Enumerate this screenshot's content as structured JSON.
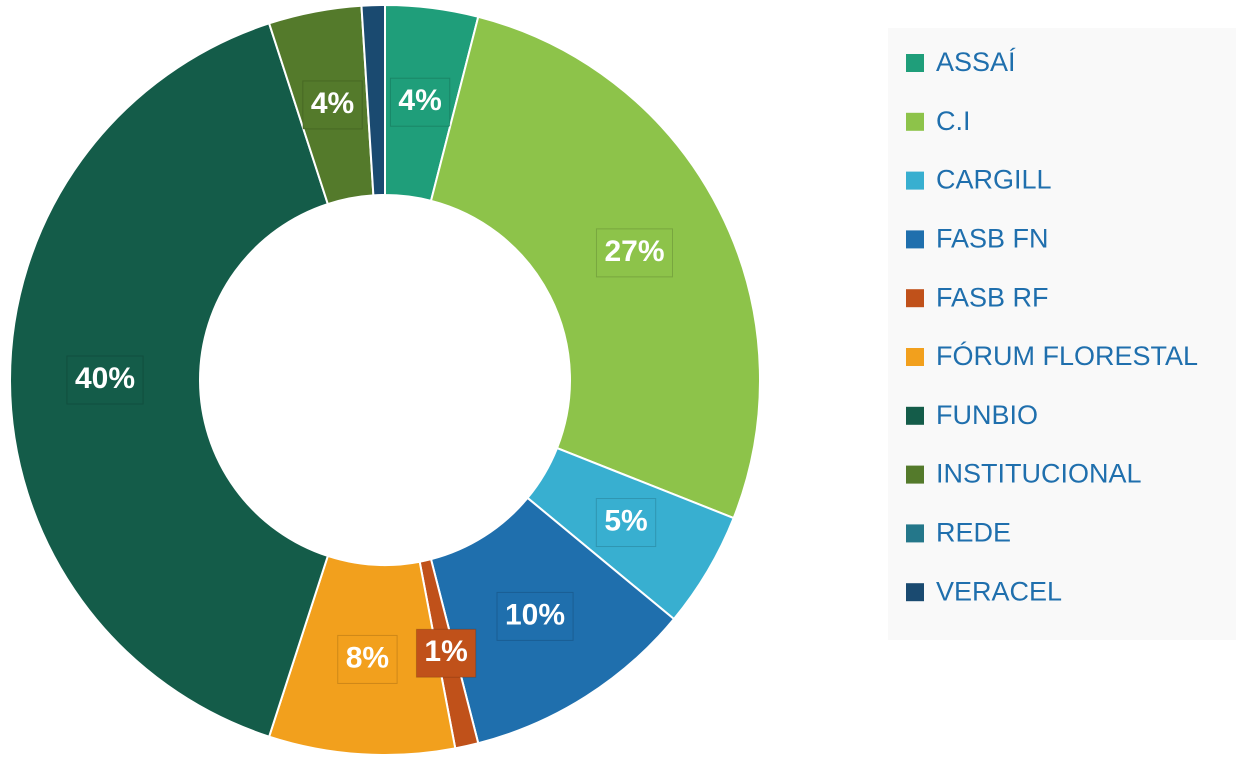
{
  "chart_data": {
    "type": "donut",
    "categories": [
      "ASSAÍ",
      "C.I",
      "CARGILL",
      "FASB FN",
      "FASB RF",
      "FÓRUM FLORESTAL",
      "FUNBIO",
      "INSTITUCIONAL",
      "REDE",
      "VERACEL"
    ],
    "values": [
      4,
      27,
      5,
      10,
      1,
      8,
      40,
      4,
      0,
      1
    ],
    "value_labels": [
      "4%",
      "27%",
      "5%",
      "10%",
      "1%",
      "8%",
      "40%",
      "4%",
      null,
      null
    ],
    "colors": [
      "#1f9e7a",
      "#8dc34a",
      "#38afd0",
      "#1f6fad",
      "#c0511a",
      "#f2a01d",
      "#145c49",
      "#547a2b",
      "#24778a",
      "#1a4a70"
    ],
    "legend": "right"
  }
}
